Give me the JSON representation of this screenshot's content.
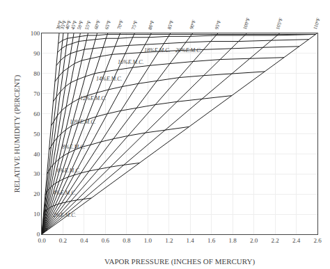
{
  "chart_data": {
    "type": "line",
    "xlabel": "VAPOR PRESSURE (INCHES OF MERCURY)",
    "ylabel": "RELATIVE HUMIDITY (PERCENT)",
    "xlim": [
      0,
      2.6
    ],
    "ylim": [
      0,
      100
    ],
    "xticks": [
      {
        "value": 0,
        "label": "0.0"
      },
      0.2,
      0.4,
      0.6,
      0.8,
      {
        "value": 1.0,
        "label": "1.0"
      },
      1.2,
      1.4,
      1.6,
      1.8,
      {
        "value": 2.0,
        "label": "2.0"
      },
      2.2,
      2.4,
      2.6
    ],
    "yticks": [
      0,
      10,
      20,
      30,
      40,
      50,
      60,
      70,
      80,
      90,
      100
    ],
    "grid": true,
    "series": [
      {
        "x": [
          0,
          0.164
        ],
        "values": [
          0,
          100
        ],
        "color": "#1a1a1a",
        "label": "30°F"
      },
      {
        "x": [
          0,
          0.203
        ],
        "values": [
          0,
          100
        ],
        "color": "#1a1a1a",
        "label": "35°F"
      },
      {
        "x": [
          0,
          0.248
        ],
        "values": [
          0,
          100
        ],
        "color": "#1a1a1a",
        "label": "40°F"
      },
      {
        "x": [
          0,
          0.302
        ],
        "values": [
          0,
          100
        ],
        "color": "#1a1a1a",
        "label": "45°F"
      },
      {
        "x": [
          0,
          0.363
        ],
        "values": [
          0,
          100
        ],
        "color": "#1a1a1a",
        "label": "50°F"
      },
      {
        "x": [
          0,
          0.436
        ],
        "values": [
          0,
          100
        ],
        "color": "#1a1a1a",
        "label": "55°F"
      },
      {
        "x": [
          0,
          0.522
        ],
        "values": [
          0,
          100
        ],
        "color": "#1a1a1a",
        "label": "60°F"
      },
      {
        "x": [
          0,
          0.622
        ],
        "values": [
          0,
          100
        ],
        "color": "#1a1a1a",
        "label": "65°F"
      },
      {
        "x": [
          0,
          0.739
        ],
        "values": [
          0,
          100
        ],
        "color": "#1a1a1a",
        "label": "70°F"
      },
      {
        "x": [
          0,
          0.875
        ],
        "values": [
          0,
          100
        ],
        "color": "#1a1a1a",
        "label": "75°F"
      },
      {
        "x": [
          0,
          1.032
        ],
        "values": [
          0,
          100
        ],
        "color": "#1a1a1a",
        "label": "80°F"
      },
      {
        "x": [
          0,
          1.213
        ],
        "values": [
          0,
          100
        ],
        "color": "#1a1a1a",
        "label": "85°F"
      },
      {
        "x": [
          0,
          1.422
        ],
        "values": [
          0,
          100
        ],
        "color": "#1a1a1a",
        "label": "90°F"
      },
      {
        "x": [
          0,
          1.66
        ],
        "values": [
          0,
          100
        ],
        "color": "#1a1a1a",
        "label": "95°F"
      },
      {
        "x": [
          0,
          1.933
        ],
        "values": [
          0,
          100
        ],
        "color": "#1a1a1a",
        "label": "100°F"
      },
      {
        "x": [
          0,
          2.243
        ],
        "values": [
          0,
          100
        ],
        "color": "#1a1a1a",
        "label": "105°F"
      },
      {
        "x": [
          0,
          2.596
        ],
        "values": [
          0,
          100
        ],
        "color": "#1a1a1a",
        "label": "110°F"
      },
      {
        "x": [
          0.0164,
          0.021315,
          0.02728,
          0.03473,
          0.04356,
          0.0545,
          0.06786,
          0.08397,
          0.10346,
          0.126875,
          0.1548,
          0.188015,
          0.22752,
          0.2739,
          0.32861,
          0.392525,
          0.46728
        ],
        "values": [
          10.0,
          10.5,
          11.0,
          11.5,
          12.0,
          12.5,
          13.0,
          13.5,
          14.0,
          14.5,
          15.0,
          15.5,
          16.0,
          16.5,
          17.0,
          17.5,
          18.0
        ],
        "color": "#1a1a1a"
      },
      {
        "x": [
          0.03198,
          0.041615,
          0.05332,
          0.06795,
          0.085305,
          0.10682,
          0.13311,
          0.16483,
          0.203225,
          0.249375,
          0.30444,
          0.369965,
          0.44793,
          0.5395,
          0.647555,
          0.773835,
          0.92158
        ],
        "values": [
          19.5,
          20.5,
          21.5,
          22.5,
          23.5,
          24.5,
          25.5,
          26.5,
          27.5,
          28.5,
          29.5,
          30.5,
          31.5,
          32.5,
          33.5,
          34.5,
          35.5
        ],
        "color": "#1a1a1a"
      },
      {
        "x": [
          0.0492,
          0.063945,
          0.08184,
          0.10419,
          0.13068,
          0.1635,
          0.20358,
          0.25191,
          0.31038,
          0.380625,
          0.45924,
          0.55798,
          0.67545,
          0.8134,
          0.976165,
          1.16636,
          1.38886
        ],
        "values": [
          30.0,
          31.5,
          33.0,
          34.5,
          36.0,
          37.5,
          39.0,
          40.5,
          42.0,
          43.5,
          44.5,
          46.0,
          47.5,
          49.0,
          50.5,
          52.0,
          53.5
        ],
        "color": "#1a1a1a"
      },
      {
        "x": [
          0.06888,
          0.08932,
          0.11408,
          0.14496,
          0.1815,
          0.22672,
          0.28188,
          0.34521,
          0.42123,
          0.511875,
          0.6192,
          0.745995,
          0.89586,
          1.0707,
          1.27578,
          1.514025,
          1.79124
        ],
        "values": [
          42.0,
          44.0,
          46.0,
          48.0,
          50.0,
          52.0,
          54.0,
          55.5,
          57.0,
          58.5,
          60.0,
          61.5,
          63.0,
          64.5,
          66.0,
          67.5,
          69.0
        ],
        "color": "#1a1a1a"
      },
      {
        "x": [
          0.08856,
          0.114695,
          0.14632,
          0.18573,
          0.230505,
          0.28558,
          0.35235,
          0.42918,
          0.520995,
          0.63,
          0.75852,
          0.90975,
          1.08783,
          1.2948,
          1.52707,
          1.7944,
          2.10276
        ],
        "values": [
          54.0,
          56.5,
          59.0,
          61.5,
          63.5,
          65.5,
          67.5,
          69.0,
          70.5,
          72.0,
          73.5,
          75.0,
          76.5,
          78.0,
          79.0,
          80.0,
          81.0
        ],
        "color": "#1a1a1a"
      },
      {
        "x": [
          0.10824,
          0.139055,
          0.17608,
          0.22197,
          0.274065,
          0.33572,
          0.40977,
          0.4976,
          0.59859,
          0.7175,
          0.85656,
          1.01892,
          1.2087,
          1.4276,
          1.68171,
          1.962625,
          2.28448
        ],
        "values": [
          66.0,
          68.5,
          71.0,
          73.5,
          75.5,
          77.0,
          78.5,
          80.0,
          81.0,
          82.0,
          83.0,
          84.0,
          85.0,
          86.0,
          87.0,
          87.5,
          88.0
        ],
        "color": "#1a1a1a"
      },
      {
        "x": [
          0.12464,
          0.159355,
          0.20088,
          0.25066,
          0.30855,
          0.37714,
          0.45675,
          0.55047,
          0.661405,
          0.7875,
          0.93396,
          1.10383,
          1.30113,
          1.5272,
          1.788025,
          2.08599,
          2.42726
        ],
        "values": [
          76.0,
          78.5,
          81.0,
          83.0,
          85.0,
          86.5,
          87.5,
          88.5,
          89.5,
          90.0,
          90.5,
          91.0,
          91.5,
          92.0,
          92.5,
          93.0,
          93.5
        ],
        "color": "#1a1a1a"
      },
      {
        "x": [
          0.13776,
          0.175595,
          0.21948,
          0.2718,
          0.33033,
          0.40112,
          0.48285,
          0.57846,
          0.690965,
          0.8225,
          0.97524,
          1.15235,
          1.35801,
          1.5936,
          1.85568,
          2.164495,
          2.51812
        ],
        "values": [
          84.0,
          86.5,
          88.5,
          90.0,
          91.0,
          92.0,
          92.5,
          93.0,
          93.5,
          94.0,
          94.5,
          95.0,
          95.5,
          96.0,
          96.0,
          96.5,
          97.0
        ],
        "color": "#1a1a1a"
      },
      {
        "x": [
          0.14842,
          0.187775,
          0.23312,
          0.2869,
          0.34848,
          0.42074,
          0.50634,
          0.60645,
          0.720525,
          0.8575,
          1.01136,
          1.194805,
          1.40067,
          1.6434,
          1.91367,
          2.22057,
          2.58302
        ],
        "values": [
          90.5,
          92.5,
          94.0,
          95.0,
          96.0,
          96.5,
          97.0,
          97.5,
          97.5,
          98.0,
          98.0,
          98.5,
          98.5,
          99.0,
          99.0,
          99.0,
          99.5
        ],
        "color": "#1a1a1a"
      },
      {
        "x": [
          0.1558,
          0.195895,
          0.2418,
          0.29596,
          0.357555,
          0.43164,
          0.51678,
          0.61889,
          0.735305,
          0.870625,
          1.02684,
          1.206935,
          1.41489,
          1.6517,
          1.923335,
          2.231785,
          2.58302
        ],
        "values": [
          95.0,
          96.5,
          97.5,
          98.0,
          98.5,
          99.0,
          99.0,
          99.5,
          99.5,
          99.5,
          99.5,
          99.5,
          99.5,
          99.5,
          99.5,
          99.5,
          99.5
        ],
        "color": "#1a1a1a"
      }
    ],
    "annotations": [
      {
        "text": "2%E.M.C.",
        "x": 0.09,
        "y": 9.5
      },
      {
        "text": "4%E.M.C.",
        "x": 0.09,
        "y": 20.5
      },
      {
        "text": "6%E.M.C.",
        "x": 0.13,
        "y": 31.5
      },
      {
        "text": "8%E.M.C.",
        "x": 0.18,
        "y": 43.5
      },
      {
        "text": "10%E.M.C.",
        "x": 0.25,
        "y": 56.0
      },
      {
        "text": "12%E.M.C.",
        "x": 0.35,
        "y": 67.5
      },
      {
        "text": "14%E.M.C.",
        "x": 0.5,
        "y": 77.5
      },
      {
        "text": "16%E.M.C.",
        "x": 0.7,
        "y": 85.5
      },
      {
        "text": "18%E.M.C.",
        "x": 0.95,
        "y": 91.5
      },
      {
        "text": "20%E.M.C.",
        "x": 1.25,
        "y": 91.5
      }
    ]
  }
}
